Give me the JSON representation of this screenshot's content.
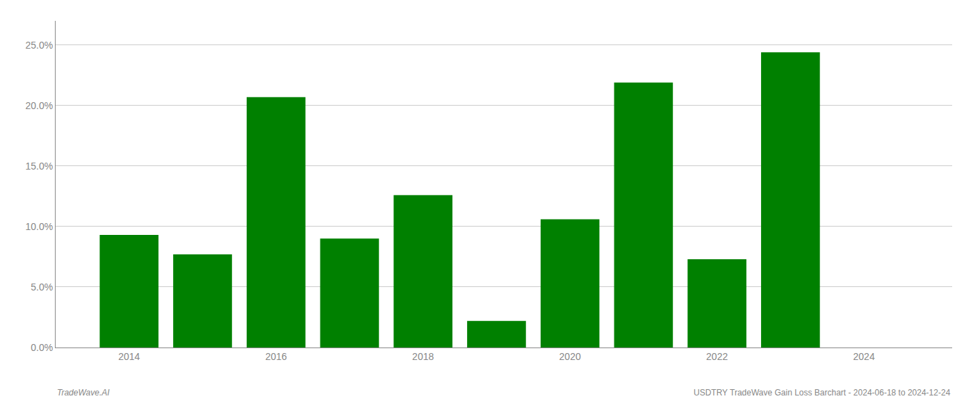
{
  "chart_data": {
    "type": "bar",
    "x": [
      2014,
      2015,
      2016,
      2017,
      2018,
      2019,
      2020,
      2021,
      2022,
      2023
    ],
    "values": [
      0.093,
      0.077,
      0.207,
      0.09,
      0.126,
      0.022,
      0.106,
      0.219,
      0.073,
      0.244
    ],
    "color": "#008000",
    "xlim": [
      2013.0,
      2025.2
    ],
    "xticks": [
      2014,
      2016,
      2018,
      2020,
      2022,
      2024
    ],
    "ylim": [
      0,
      0.27
    ],
    "yticks": [
      {
        "value": 0.0,
        "label": "0.0%"
      },
      {
        "value": 0.05,
        "label": "5.0%"
      },
      {
        "value": 0.1,
        "label": "10.0%"
      },
      {
        "value": 0.15,
        "label": "15.0%"
      },
      {
        "value": 0.2,
        "label": "20.0%"
      },
      {
        "value": 0.25,
        "label": "25.0%"
      }
    ],
    "grid": true,
    "annotations": [
      "TradeWave.AI",
      "USDTRY TradeWave Gain Loss Barchart - 2024-06-18 to 2024-12-24"
    ]
  }
}
